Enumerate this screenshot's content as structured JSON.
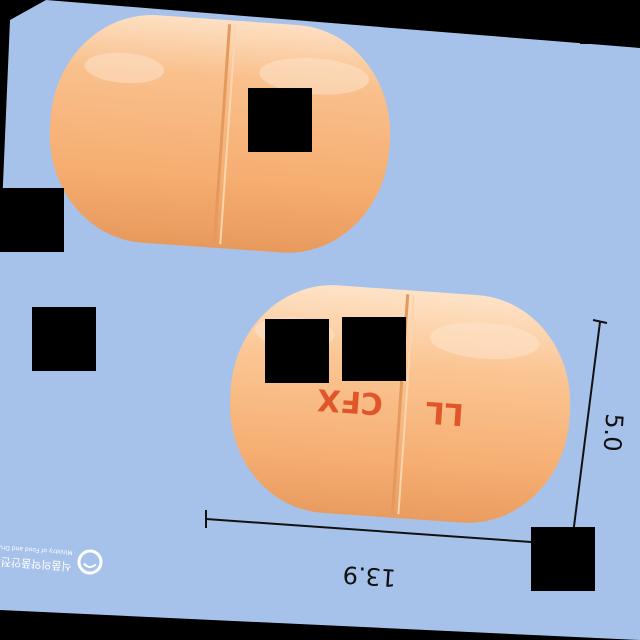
{
  "background_color": "#a7c2ea",
  "capsule_color": "#f7b277",
  "capsule_highlight": "#fde0c3",
  "imprint_color": "#e0562a",
  "imprint": {
    "side_a": "LL",
    "side_b": "CFX"
  },
  "dimensions": {
    "length_mm": "13.9",
    "width_mm": "5.0"
  },
  "watermark": {
    "korean": "식품의약품안전처",
    "english": "Ministry of Food and Drug Safety"
  }
}
